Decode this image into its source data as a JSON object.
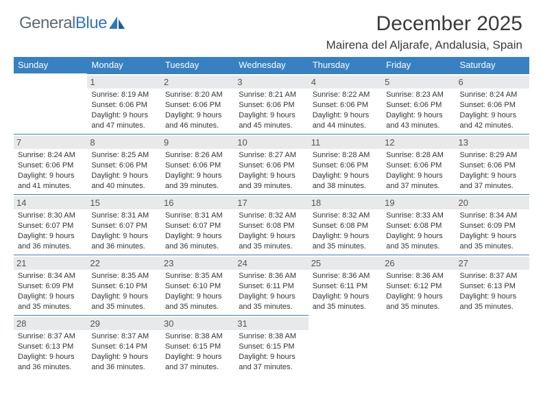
{
  "logo": {
    "part1": "General",
    "part2": "Blue"
  },
  "title": "December 2025",
  "location": "Mairena del Aljarafe, Andalusia, Spain",
  "colors": {
    "header_bg": "#3781c2",
    "header_text": "#ffffff",
    "daynum_bg": "#e7e9eb",
    "cell_border": "#3b7fb8",
    "body_text": "#333333",
    "logo_gray": "#5a6a78",
    "logo_blue": "#2f78bd"
  },
  "weekdays": [
    "Sunday",
    "Monday",
    "Tuesday",
    "Wednesday",
    "Thursday",
    "Friday",
    "Saturday"
  ],
  "weeks": [
    [
      null,
      {
        "n": "1",
        "sr": "8:19 AM",
        "ss": "6:06 PM",
        "dl": "9 hours and 47 minutes."
      },
      {
        "n": "2",
        "sr": "8:20 AM",
        "ss": "6:06 PM",
        "dl": "9 hours and 46 minutes."
      },
      {
        "n": "3",
        "sr": "8:21 AM",
        "ss": "6:06 PM",
        "dl": "9 hours and 45 minutes."
      },
      {
        "n": "4",
        "sr": "8:22 AM",
        "ss": "6:06 PM",
        "dl": "9 hours and 44 minutes."
      },
      {
        "n": "5",
        "sr": "8:23 AM",
        "ss": "6:06 PM",
        "dl": "9 hours and 43 minutes."
      },
      {
        "n": "6",
        "sr": "8:24 AM",
        "ss": "6:06 PM",
        "dl": "9 hours and 42 minutes."
      }
    ],
    [
      {
        "n": "7",
        "sr": "8:24 AM",
        "ss": "6:06 PM",
        "dl": "9 hours and 41 minutes."
      },
      {
        "n": "8",
        "sr": "8:25 AM",
        "ss": "6:06 PM",
        "dl": "9 hours and 40 minutes."
      },
      {
        "n": "9",
        "sr": "8:26 AM",
        "ss": "6:06 PM",
        "dl": "9 hours and 39 minutes."
      },
      {
        "n": "10",
        "sr": "8:27 AM",
        "ss": "6:06 PM",
        "dl": "9 hours and 39 minutes."
      },
      {
        "n": "11",
        "sr": "8:28 AM",
        "ss": "6:06 PM",
        "dl": "9 hours and 38 minutes."
      },
      {
        "n": "12",
        "sr": "8:28 AM",
        "ss": "6:06 PM",
        "dl": "9 hours and 37 minutes."
      },
      {
        "n": "13",
        "sr": "8:29 AM",
        "ss": "6:06 PM",
        "dl": "9 hours and 37 minutes."
      }
    ],
    [
      {
        "n": "14",
        "sr": "8:30 AM",
        "ss": "6:07 PM",
        "dl": "9 hours and 36 minutes."
      },
      {
        "n": "15",
        "sr": "8:31 AM",
        "ss": "6:07 PM",
        "dl": "9 hours and 36 minutes."
      },
      {
        "n": "16",
        "sr": "8:31 AM",
        "ss": "6:07 PM",
        "dl": "9 hours and 36 minutes."
      },
      {
        "n": "17",
        "sr": "8:32 AM",
        "ss": "6:08 PM",
        "dl": "9 hours and 35 minutes."
      },
      {
        "n": "18",
        "sr": "8:32 AM",
        "ss": "6:08 PM",
        "dl": "9 hours and 35 minutes."
      },
      {
        "n": "19",
        "sr": "8:33 AM",
        "ss": "6:08 PM",
        "dl": "9 hours and 35 minutes."
      },
      {
        "n": "20",
        "sr": "8:34 AM",
        "ss": "6:09 PM",
        "dl": "9 hours and 35 minutes."
      }
    ],
    [
      {
        "n": "21",
        "sr": "8:34 AM",
        "ss": "6:09 PM",
        "dl": "9 hours and 35 minutes."
      },
      {
        "n": "22",
        "sr": "8:35 AM",
        "ss": "6:10 PM",
        "dl": "9 hours and 35 minutes."
      },
      {
        "n": "23",
        "sr": "8:35 AM",
        "ss": "6:10 PM",
        "dl": "9 hours and 35 minutes."
      },
      {
        "n": "24",
        "sr": "8:36 AM",
        "ss": "6:11 PM",
        "dl": "9 hours and 35 minutes."
      },
      {
        "n": "25",
        "sr": "8:36 AM",
        "ss": "6:11 PM",
        "dl": "9 hours and 35 minutes."
      },
      {
        "n": "26",
        "sr": "8:36 AM",
        "ss": "6:12 PM",
        "dl": "9 hours and 35 minutes."
      },
      {
        "n": "27",
        "sr": "8:37 AM",
        "ss": "6:13 PM",
        "dl": "9 hours and 35 minutes."
      }
    ],
    [
      {
        "n": "28",
        "sr": "8:37 AM",
        "ss": "6:13 PM",
        "dl": "9 hours and 36 minutes."
      },
      {
        "n": "29",
        "sr": "8:37 AM",
        "ss": "6:14 PM",
        "dl": "9 hours and 36 minutes."
      },
      {
        "n": "30",
        "sr": "8:38 AM",
        "ss": "6:15 PM",
        "dl": "9 hours and 37 minutes."
      },
      {
        "n": "31",
        "sr": "8:38 AM",
        "ss": "6:15 PM",
        "dl": "9 hours and 37 minutes."
      },
      null,
      null,
      null
    ]
  ],
  "labels": {
    "sunrise": "Sunrise: ",
    "sunset": "Sunset: ",
    "daylight": "Daylight: "
  }
}
